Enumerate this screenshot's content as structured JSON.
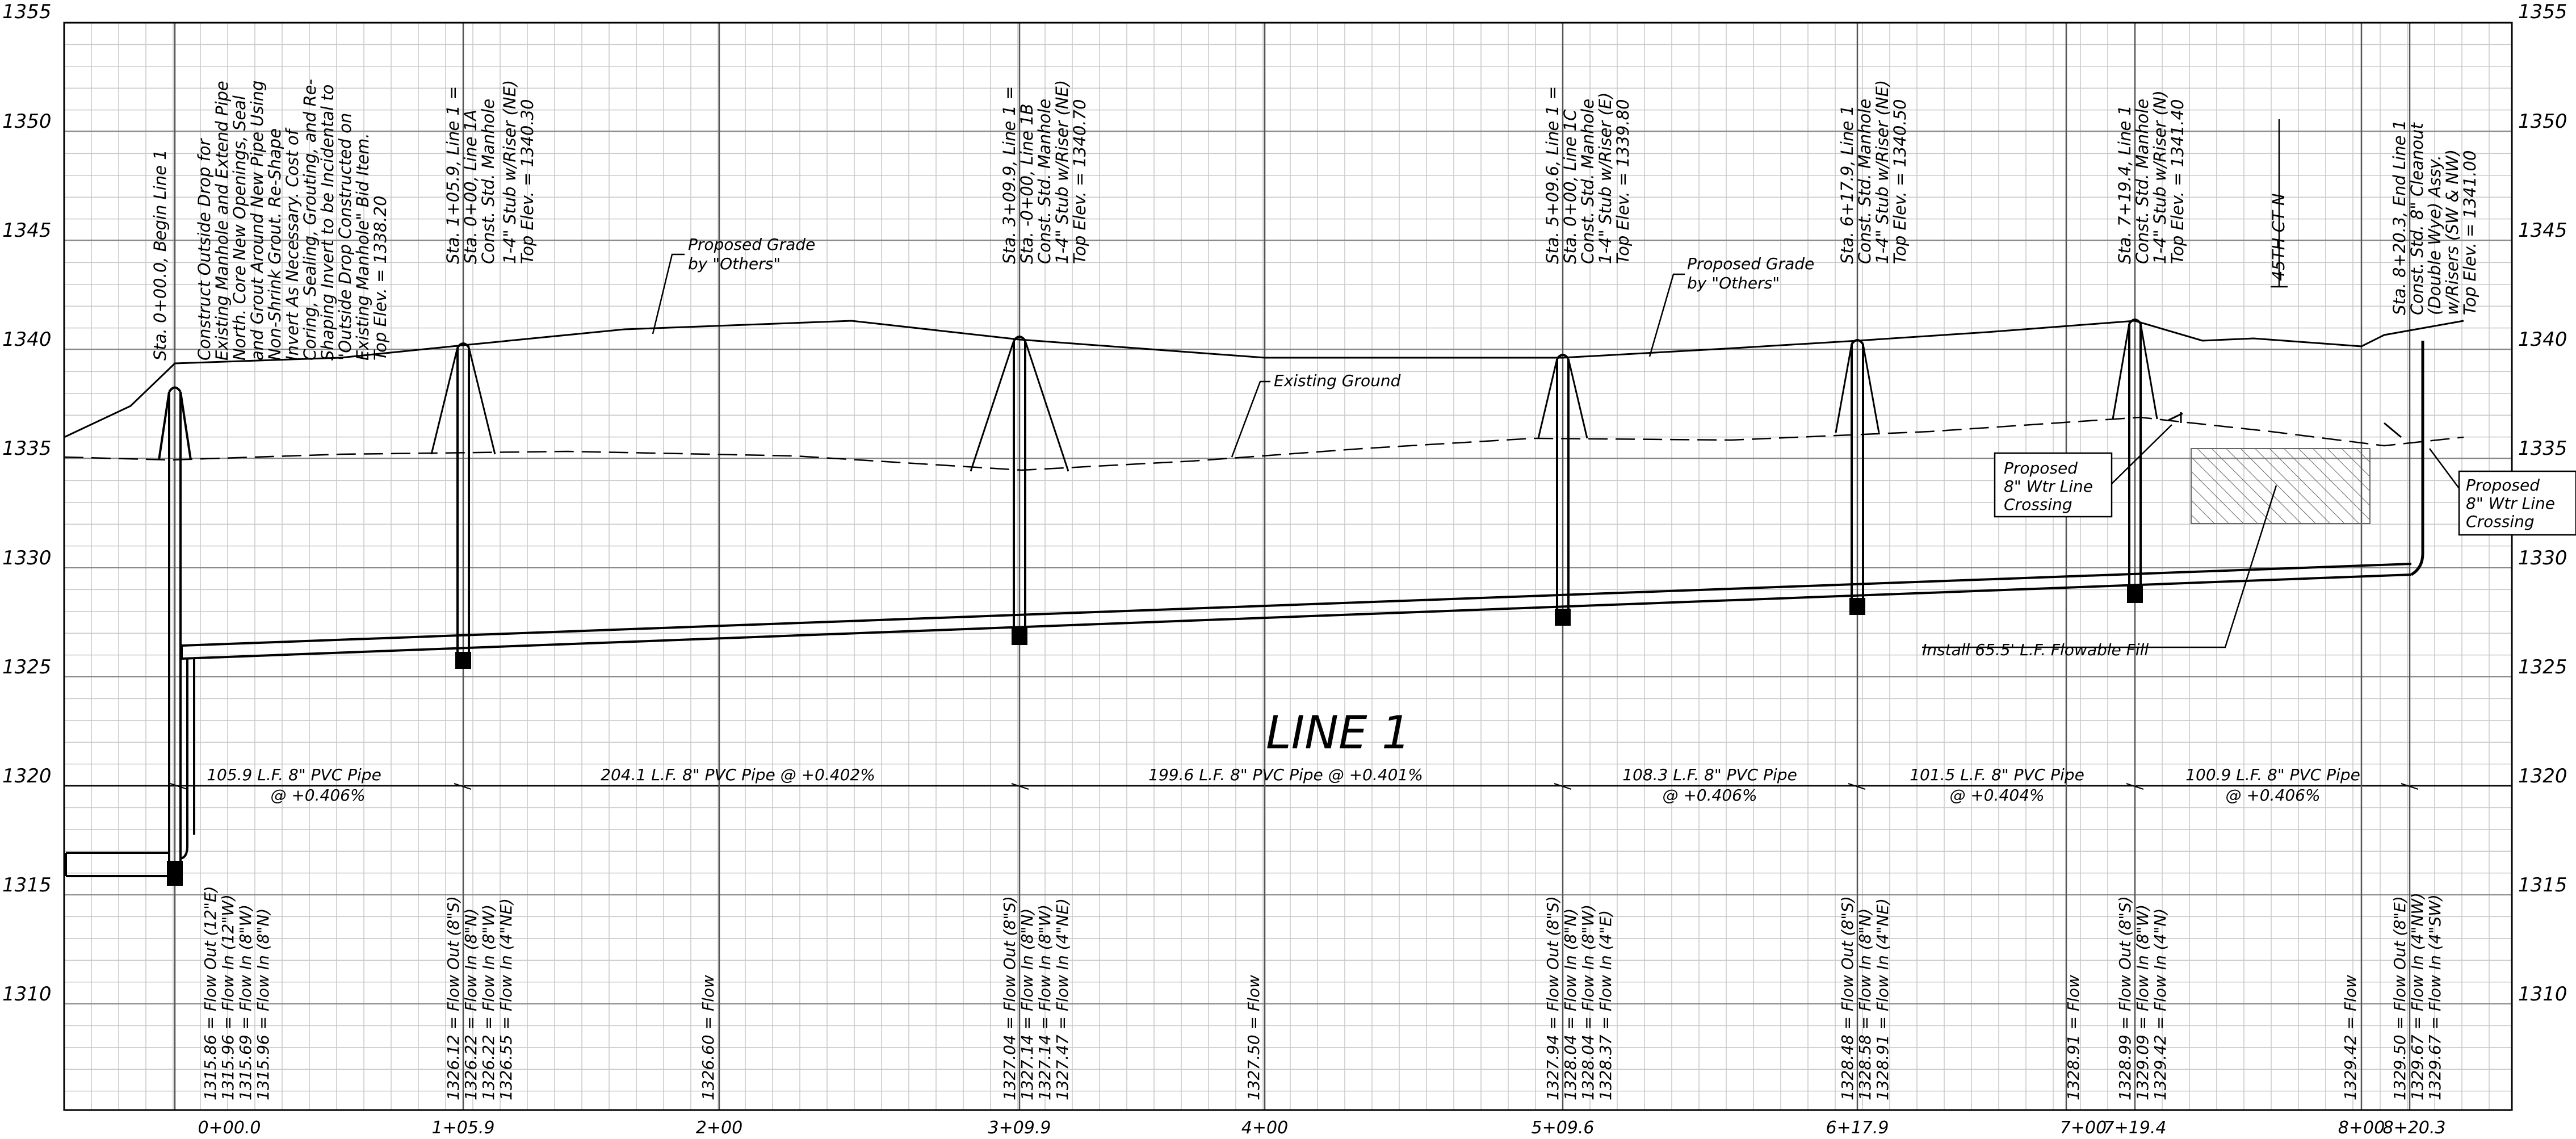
{
  "profile": {
    "title": "LINE 1",
    "elev_labels": [
      "1355",
      "1350",
      "1345",
      "1340",
      "1335",
      "1330",
      "1325",
      "1320",
      "1315",
      "1310"
    ],
    "station_labels": [
      "0+00.0",
      "1+05.9",
      "2+00",
      "3+09.9",
      "4+00",
      "5+09.6",
      "6+17.9",
      "7+00",
      "7+19.4",
      "8+00",
      "8+20.3"
    ],
    "structure_notes": [
      "Sta. 0+00.0, Begin Line 1",
      "Construct Outside Drop for",
      "Existing Manhole and Extend Pipe",
      "North. Core New Openings, Seal",
      "and Grout Around New Pipe Using",
      "Non-Shrink Grout. Re-Shape",
      "Invert As Necessary. Cost of",
      "Coring, Sealing, Grouting, and Re-",
      "Shaping Invert to be Incidental to",
      "\"Outside Drop Constructed on",
      "Existing Manhole\" Bid Item.",
      "Top Elev. = 1338.20",
      "Sta. 1+05.9, Line 1 =",
      "Sta. 0+00, Line 1A",
      "Const. Std. Manhole",
      "1-4\" Stub w/Riser (NE)",
      "Top Elev. = 1340.30",
      "Sta. 3+09.9, Line 1 =",
      "Sta. -0+00, Line 1B",
      "Const. Std. Manhole",
      "1-4\" Stub w/Riser (NE)",
      "Top Elev. = 1340.70",
      "Sta. 5+09.6, Line 1 =",
      "Sta. 0+00, Line 1C",
      "Const. Std. Manhole",
      "1-4\" Stub w/Riser (E)",
      "Top Elev. = 1339.80",
      "Sta. 6+17.9, Line 1",
      "Const. Std. Manhole",
      "1-4\" Stub w/Riser (NE)",
      "Top Elev. = 1340.50",
      "Sta. 7+19.4, Line 1",
      "Const. Std. Manhole",
      "1-4\" Stub w/Riser (N)",
      "Top Elev. = 1341.40",
      "45TH CT N",
      "Sta. 8+20.3, End Line 1",
      "Const. Std. 8\" Cleanout",
      "(Double Wye) Assy.",
      "w/Risers (SW & NW)",
      "Top Elev. = 1341.00"
    ],
    "callouts": [
      "Proposed Grade",
      "by \"Others\"",
      "Proposed Grade",
      "by \"Others\"",
      "Existing Ground",
      "Proposed",
      "8\" Wtr Line",
      "Crossing",
      "Proposed",
      "8\" Wtr Line",
      "Crossing",
      "Install 65.5' L.F. Flowable Fill"
    ],
    "pipe_labels": [
      "105.9 L.F. 8\" PVC Pipe",
      "@ +0.406%",
      "204.1 L.F. 8\" PVC Pipe @ +0.402%",
      "199.6 L.F. 8\" PVC Pipe @ +0.401%",
      "108.3 L.F. 8\" PVC Pipe",
      "@ +0.406%",
      "101.5 L.F. 8\" PVC Pipe",
      "@ +0.404%",
      "100.9 L.F. 8\" PVC Pipe",
      "@ +0.406%"
    ],
    "flow_labels": [
      "1315.86 = Flow Out (12\"E)",
      "1315.96 = Flow In (12\"W)",
      "1315.69 = Flow In (8\"W)",
      "1315.96 = Flow In (8\"N)",
      "1326.12 = Flow Out (8\"S)",
      "1326.22 = Flow In (8\"N)",
      "1326.22 = Flow In (8\"W)",
      "1326.55 = Flow In (4\"NE)",
      "1326.60 = Flow",
      "1327.04 = Flow Out (8\"S)",
      "1327.14 = Flow In (8\"N)",
      "1327.14 = Flow In (8\"W)",
      "1327.47 = Flow In (4\"NE)",
      "1327.50 = Flow",
      "1327.94 = Flow Out (8\"S)",
      "1328.04 = Flow In (8\"N)",
      "1328.04 = Flow In (8\"W)",
      "1328.37 = Flow In (4\"E)",
      "1328.48 = Flow Out (8\"S)",
      "1328.58 = Flow In (8\"N)",
      "1328.91 = Flow In (4\"NE)",
      "1328.91 = Flow",
      "1328.99 = Flow Out (8\"S)",
      "1329.09 = Flow In (8\"W)",
      "1329.42 = Flow In (4\"N)",
      "1329.42 = Flow",
      "1329.50 = Flow Out (8\"E)",
      "1329.67 = Flow In (4\"NW)",
      "1329.67 = Flow In (4\"SW)"
    ]
  }
}
